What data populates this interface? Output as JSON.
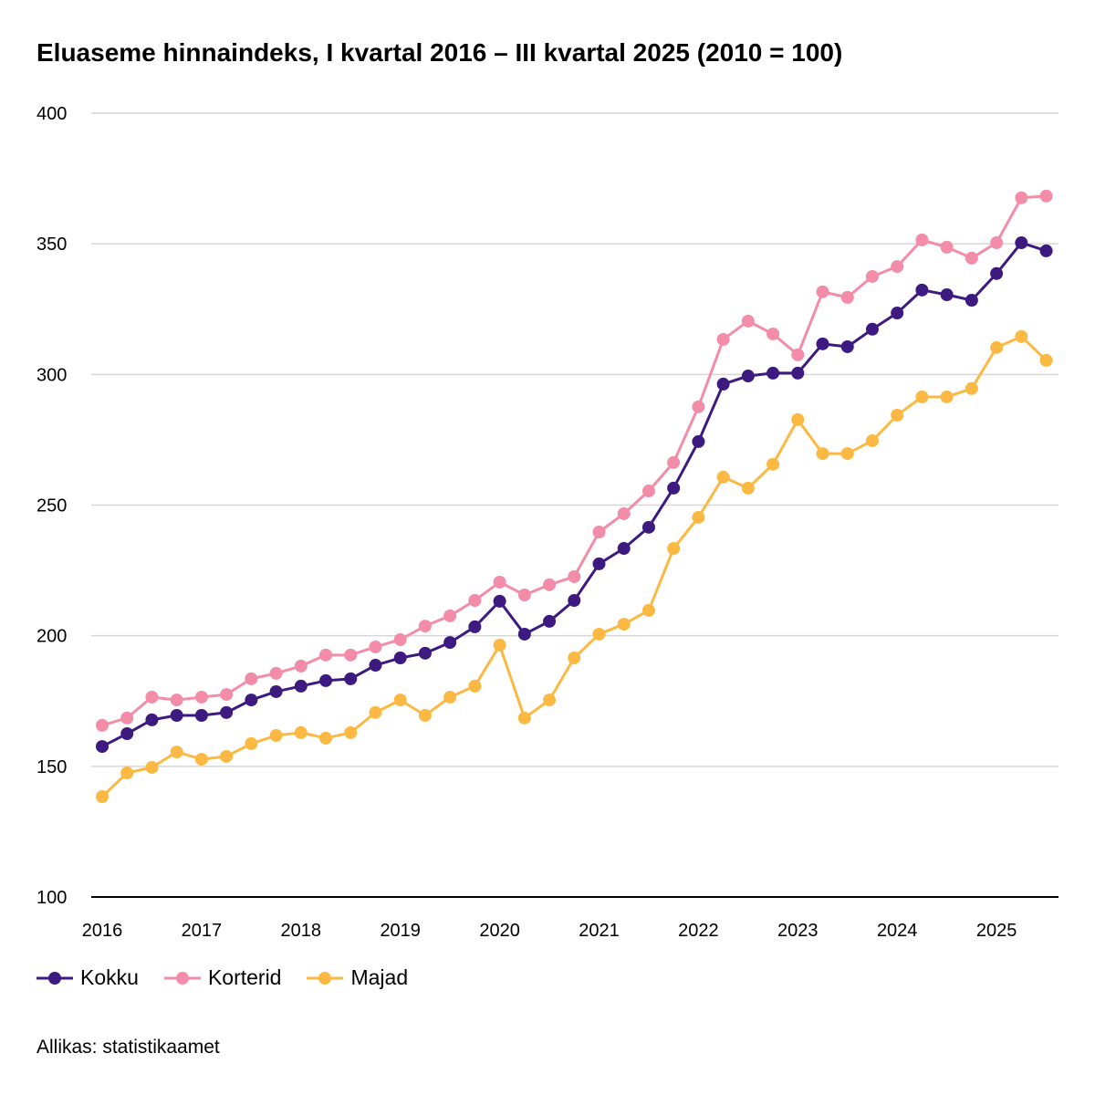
{
  "chart_data": {
    "type": "line",
    "title": "Eluaseme hinnaindeks, I kvartal 2016 – III kvartal 2025 (2010 = 100)",
    "xlabel": "",
    "ylabel": "",
    "ylim": [
      100,
      400
    ],
    "yticks": [
      "100",
      "150",
      "200",
      "250",
      "300",
      "350",
      "400"
    ],
    "xticks": [
      "2016",
      "2017",
      "2018",
      "2019",
      "2020",
      "2021",
      "2022",
      "2023",
      "2024",
      "2025"
    ],
    "grid": true,
    "legend": "bottom-left",
    "x_start": "2016 Q1",
    "x_end": "2025 Q3",
    "series": [
      {
        "name": "Kokku",
        "color": "#3d1a80",
        "values": [
          157.6,
          162.5,
          167.8,
          169.5,
          169.5,
          170.6,
          175.4,
          178.6,
          180.7,
          182.8,
          183.5,
          188.7,
          191.5,
          193.3,
          197.4,
          203.4,
          213.2,
          200.6,
          205.5,
          213.5,
          227.5,
          233.4,
          241.5,
          256.5,
          274.3,
          296.3,
          299.4,
          300.5,
          300.5,
          311.7,
          310.6,
          317.3,
          323.5,
          332.3,
          330.5,
          328.4,
          338.6,
          350.4,
          347.3
        ]
      },
      {
        "name": "Korterid",
        "color": "#f28ca8",
        "values": [
          165.7,
          168.5,
          176.5,
          175.4,
          176.5,
          177.5,
          183.5,
          185.6,
          188.4,
          192.6,
          192.6,
          195.7,
          198.5,
          203.7,
          207.6,
          213.5,
          220.5,
          215.6,
          219.5,
          222.6,
          239.7,
          246.7,
          255.4,
          266.3,
          287.6,
          313.4,
          320.4,
          315.5,
          307.5,
          331.6,
          329.5,
          337.5,
          341.3,
          351.5,
          348.7,
          344.5,
          350.4,
          367.6,
          368.3
        ]
      },
      {
        "name": "Majad",
        "color": "#fbb842",
        "values": [
          138.4,
          147.5,
          149.6,
          155.5,
          152.7,
          153.8,
          158.7,
          161.8,
          162.9,
          160.8,
          162.9,
          170.6,
          175.4,
          169.5,
          176.5,
          180.7,
          196.4,
          168.5,
          175.4,
          191.5,
          200.6,
          204.4,
          209.7,
          233.4,
          245.3,
          260.7,
          256.5,
          265.6,
          282.7,
          269.7,
          269.7,
          274.6,
          284.4,
          291.4,
          291.4,
          294.6,
          310.3,
          314.5,
          305.4
        ]
      }
    ]
  },
  "source": "Allikas: statistikaamet"
}
